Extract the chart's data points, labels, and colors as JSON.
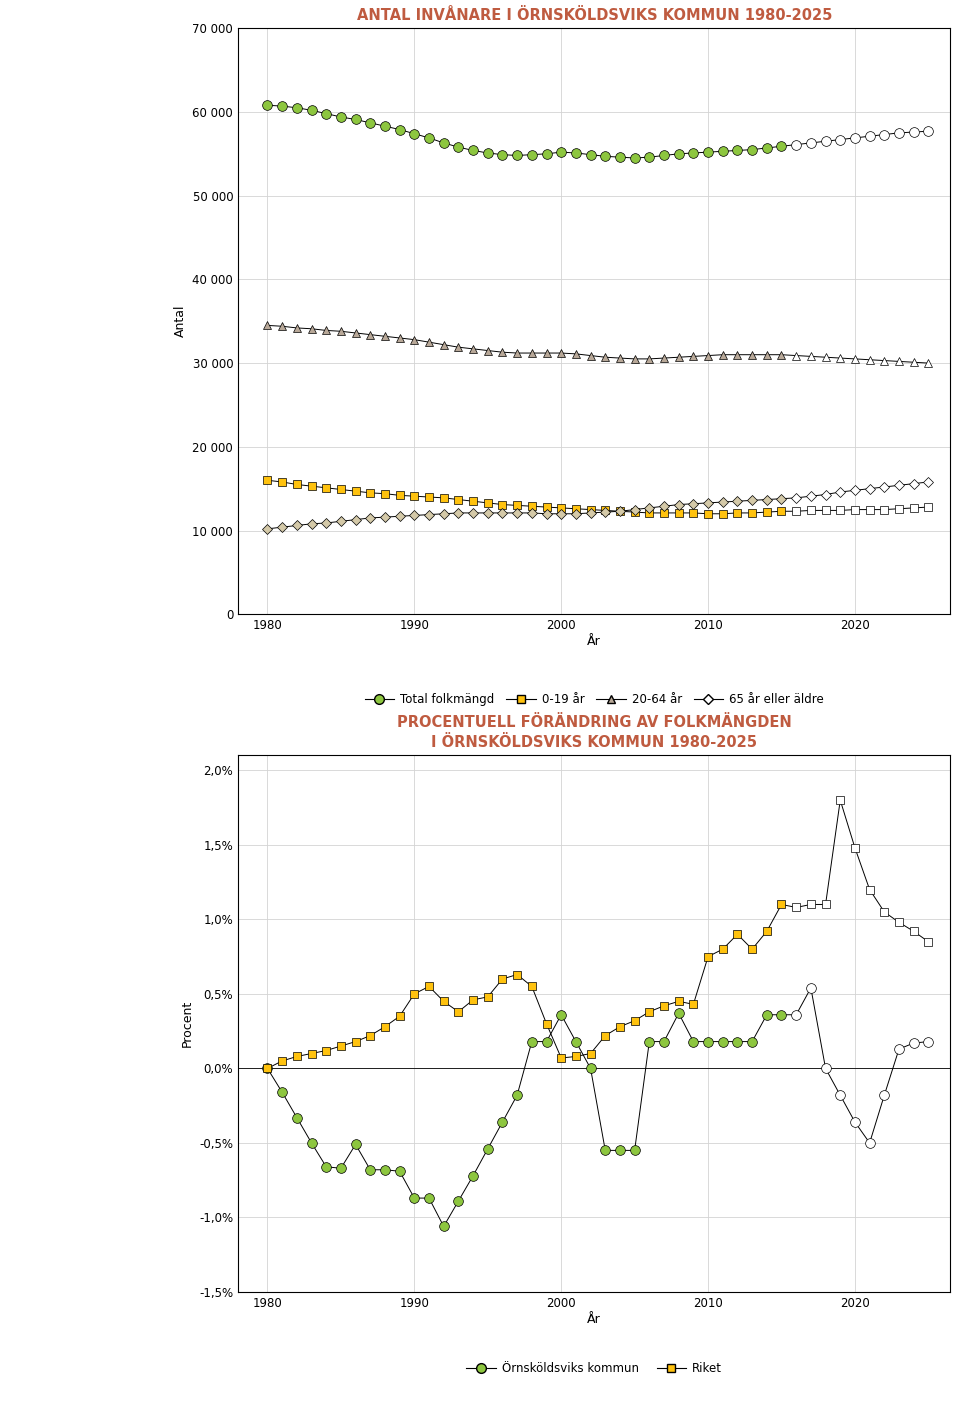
{
  "title1": "ANTAL INVÅNARE I ÖRNSKÖLDSVIKS KOMMUN 1980-2025",
  "title2": "PROCENTUELL FÖRÄNDRING AV FOLKMÄNGDEN\nI ÖRNSKÖLDSVIKS KOMMUN 1980-2025",
  "ylabel1": "Antal",
  "ylabel2": "Procent",
  "xlabel": "År",
  "years_actual": [
    1980,
    1981,
    1982,
    1983,
    1984,
    1985,
    1986,
    1987,
    1988,
    1989,
    1990,
    1991,
    1992,
    1993,
    1994,
    1995,
    1996,
    1997,
    1998,
    1999,
    2000,
    2001,
    2002,
    2003,
    2004,
    2005,
    2006,
    2007,
    2008,
    2009,
    2010,
    2011,
    2012,
    2013,
    2014,
    2015
  ],
  "years_proj": [
    2016,
    2017,
    2018,
    2019,
    2020,
    2021,
    2022,
    2023,
    2024,
    2025
  ],
  "total_actual": [
    60800,
    60700,
    60500,
    60200,
    59800,
    59400,
    59100,
    58700,
    58300,
    57900,
    57400,
    56900,
    56300,
    55800,
    55400,
    55100,
    54900,
    54800,
    54900,
    55000,
    55200,
    55100,
    54900,
    54700,
    54600,
    54500,
    54600,
    54800,
    55000,
    55100,
    55200,
    55300,
    55400,
    55500,
    55700,
    55900
  ],
  "total_proj": [
    56100,
    56300,
    56500,
    56700,
    56900,
    57100,
    57300,
    57500,
    57600,
    57700
  ],
  "age0_19_actual": [
    16000,
    15800,
    15500,
    15300,
    15100,
    14900,
    14700,
    14500,
    14400,
    14200,
    14100,
    14000,
    13900,
    13700,
    13500,
    13300,
    13100,
    13000,
    12900,
    12800,
    12700,
    12600,
    12500,
    12400,
    12300,
    12200,
    12100,
    12100,
    12100,
    12100,
    12000,
    12000,
    12100,
    12100,
    12200,
    12300
  ],
  "age0_19_proj": [
    12300,
    12400,
    12400,
    12400,
    12500,
    12500,
    12500,
    12600,
    12700,
    12800
  ],
  "age20_64_actual": [
    34500,
    34400,
    34200,
    34100,
    33900,
    33800,
    33600,
    33400,
    33200,
    33000,
    32800,
    32500,
    32200,
    31900,
    31700,
    31500,
    31300,
    31200,
    31200,
    31200,
    31200,
    31100,
    30900,
    30700,
    30600,
    30500,
    30500,
    30600,
    30700,
    30800,
    30900,
    31000,
    31000,
    31000,
    31000,
    31000
  ],
  "age20_64_proj": [
    30900,
    30800,
    30700,
    30600,
    30500,
    30400,
    30300,
    30200,
    30100,
    30000
  ],
  "age65p_actual": [
    10200,
    10400,
    10600,
    10800,
    10900,
    11100,
    11300,
    11500,
    11600,
    11700,
    11800,
    11900,
    12000,
    12100,
    12100,
    12100,
    12100,
    12100,
    12100,
    12000,
    12000,
    12000,
    12100,
    12200,
    12300,
    12500,
    12700,
    12900,
    13100,
    13200,
    13300,
    13400,
    13500,
    13600,
    13700,
    13800
  ],
  "age65p_proj": [
    13900,
    14100,
    14300,
    14600,
    14800,
    15000,
    15200,
    15400,
    15600,
    15800
  ],
  "pct_kommun_actual": [
    0.0,
    -0.16,
    -0.33,
    -0.5,
    -0.66,
    -0.67,
    -0.51,
    -0.68,
    -0.68,
    -0.69,
    -0.87,
    -0.87,
    -1.06,
    -0.89,
    -0.72,
    -0.54,
    -0.36,
    -0.18,
    0.18,
    0.18,
    0.36,
    0.18,
    0.0,
    -0.55,
    -0.55,
    -0.55,
    0.18,
    0.18,
    0.37,
    0.18,
    0.18,
    0.18,
    0.18,
    0.18,
    0.36,
    0.36
  ],
  "pct_kommun_proj": [
    0.36,
    0.54,
    0.0,
    -0.18,
    -0.36,
    -0.5,
    -0.18,
    0.13,
    0.17,
    0.18
  ],
  "pct_riket_actual": [
    0.0,
    0.05,
    0.08,
    0.1,
    0.12,
    0.15,
    0.18,
    0.22,
    0.28,
    0.35,
    0.5,
    0.55,
    0.45,
    0.38,
    0.46,
    0.48,
    0.6,
    0.63,
    0.55,
    0.3,
    0.07,
    0.08,
    0.1,
    0.22,
    0.28,
    0.32,
    0.38,
    0.42,
    0.45,
    0.43,
    0.75,
    0.8,
    0.9,
    0.8,
    0.92,
    1.1
  ],
  "pct_riket_proj": [
    1.08,
    1.1,
    1.1,
    1.8,
    1.48,
    1.2,
    1.05,
    0.98,
    0.92,
    0.85
  ],
  "bg_color": "#ffffff",
  "sidebar_color": "#bf5b40",
  "title_color": "#bf5b40",
  "color_total_filled": "#8dc63f",
  "color_0_19_filled": "#ffc20e",
  "color_20_64_filled": "#b8a898",
  "color_65p_filled": "#d4c9a8",
  "color_kommun": "#8dc63f",
  "color_riket_filled": "#ffc20e"
}
